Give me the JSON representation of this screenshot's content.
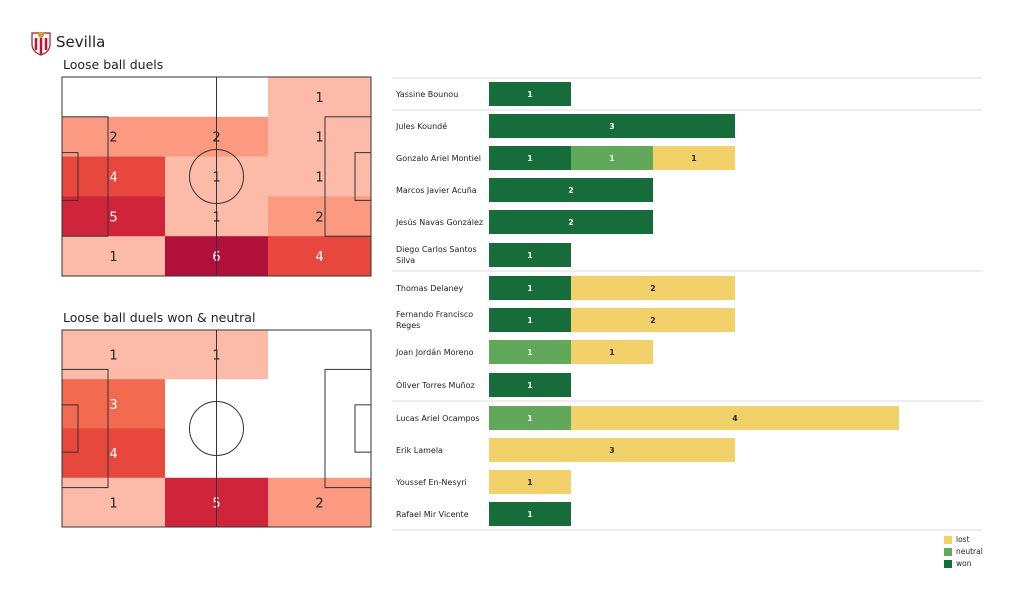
{
  "team": {
    "name": "Sevilla",
    "crest_icon": "sevilla-crest-icon"
  },
  "colors": {
    "won": "#176d39",
    "neutral": "#62a85a",
    "lost": "#f2d16b"
  },
  "chart_data": [
    {
      "type": "heatmap",
      "title": "Loose ball duels",
      "cols": 3,
      "rows": 5,
      "values": [
        [
          0,
          0,
          1
        ],
        [
          2,
          2,
          1
        ],
        [
          4,
          1,
          1
        ],
        [
          5,
          1,
          2
        ],
        [
          1,
          6,
          4
        ]
      ]
    },
    {
      "type": "heatmap",
      "title": "Loose ball duels won & neutral",
      "cols": 3,
      "rows": 4,
      "values": [
        [
          1,
          1,
          0
        ],
        [
          3,
          0,
          0
        ],
        [
          4,
          0,
          0
        ],
        [
          1,
          5,
          2
        ]
      ]
    },
    {
      "type": "bar",
      "orientation": "horizontal",
      "stacked": true,
      "legend": [
        "lost",
        "neutral",
        "won"
      ],
      "legend_placement": "bottom-right",
      "players": [
        {
          "name": "Yassine Bounou",
          "won": 1,
          "neutral": 0,
          "lost": 0,
          "group": 0
        },
        {
          "name": "Jules Koundé",
          "won": 3,
          "neutral": 0,
          "lost": 0,
          "group": 1
        },
        {
          "name": "Gonzalo Ariel Montiel",
          "won": 1,
          "neutral": 1,
          "lost": 1,
          "group": 1
        },
        {
          "name": "Marcos Javier Acuña",
          "won": 2,
          "neutral": 0,
          "lost": 0,
          "group": 1
        },
        {
          "name": "Jesús Navas González",
          "won": 2,
          "neutral": 0,
          "lost": 0,
          "group": 1
        },
        {
          "name": "Diego Carlos Santos Silva",
          "won": 1,
          "neutral": 0,
          "lost": 0,
          "group": 1
        },
        {
          "name": "Thomas Delaney",
          "won": 1,
          "neutral": 0,
          "lost": 2,
          "group": 2
        },
        {
          "name": "Fernando Francisco Reges",
          "won": 1,
          "neutral": 0,
          "lost": 2,
          "group": 2
        },
        {
          "name": "Joan Jordán Moreno",
          "won": 0,
          "neutral": 1,
          "lost": 1,
          "group": 2
        },
        {
          "name": "Óliver Torres Muñoz",
          "won": 1,
          "neutral": 0,
          "lost": 0,
          "group": 2
        },
        {
          "name": "Lucas Ariel Ocampos",
          "won": 0,
          "neutral": 1,
          "lost": 4,
          "group": 3
        },
        {
          "name": "Erik Lamela",
          "won": 0,
          "neutral": 0,
          "lost": 3,
          "group": 3
        },
        {
          "name": "Youssef En-Nesyri",
          "won": 0,
          "neutral": 0,
          "lost": 1,
          "group": 3
        },
        {
          "name": "Rafael Mir Vicente",
          "won": 1,
          "neutral": 0,
          "lost": 0,
          "group": 3
        }
      ]
    }
  ]
}
